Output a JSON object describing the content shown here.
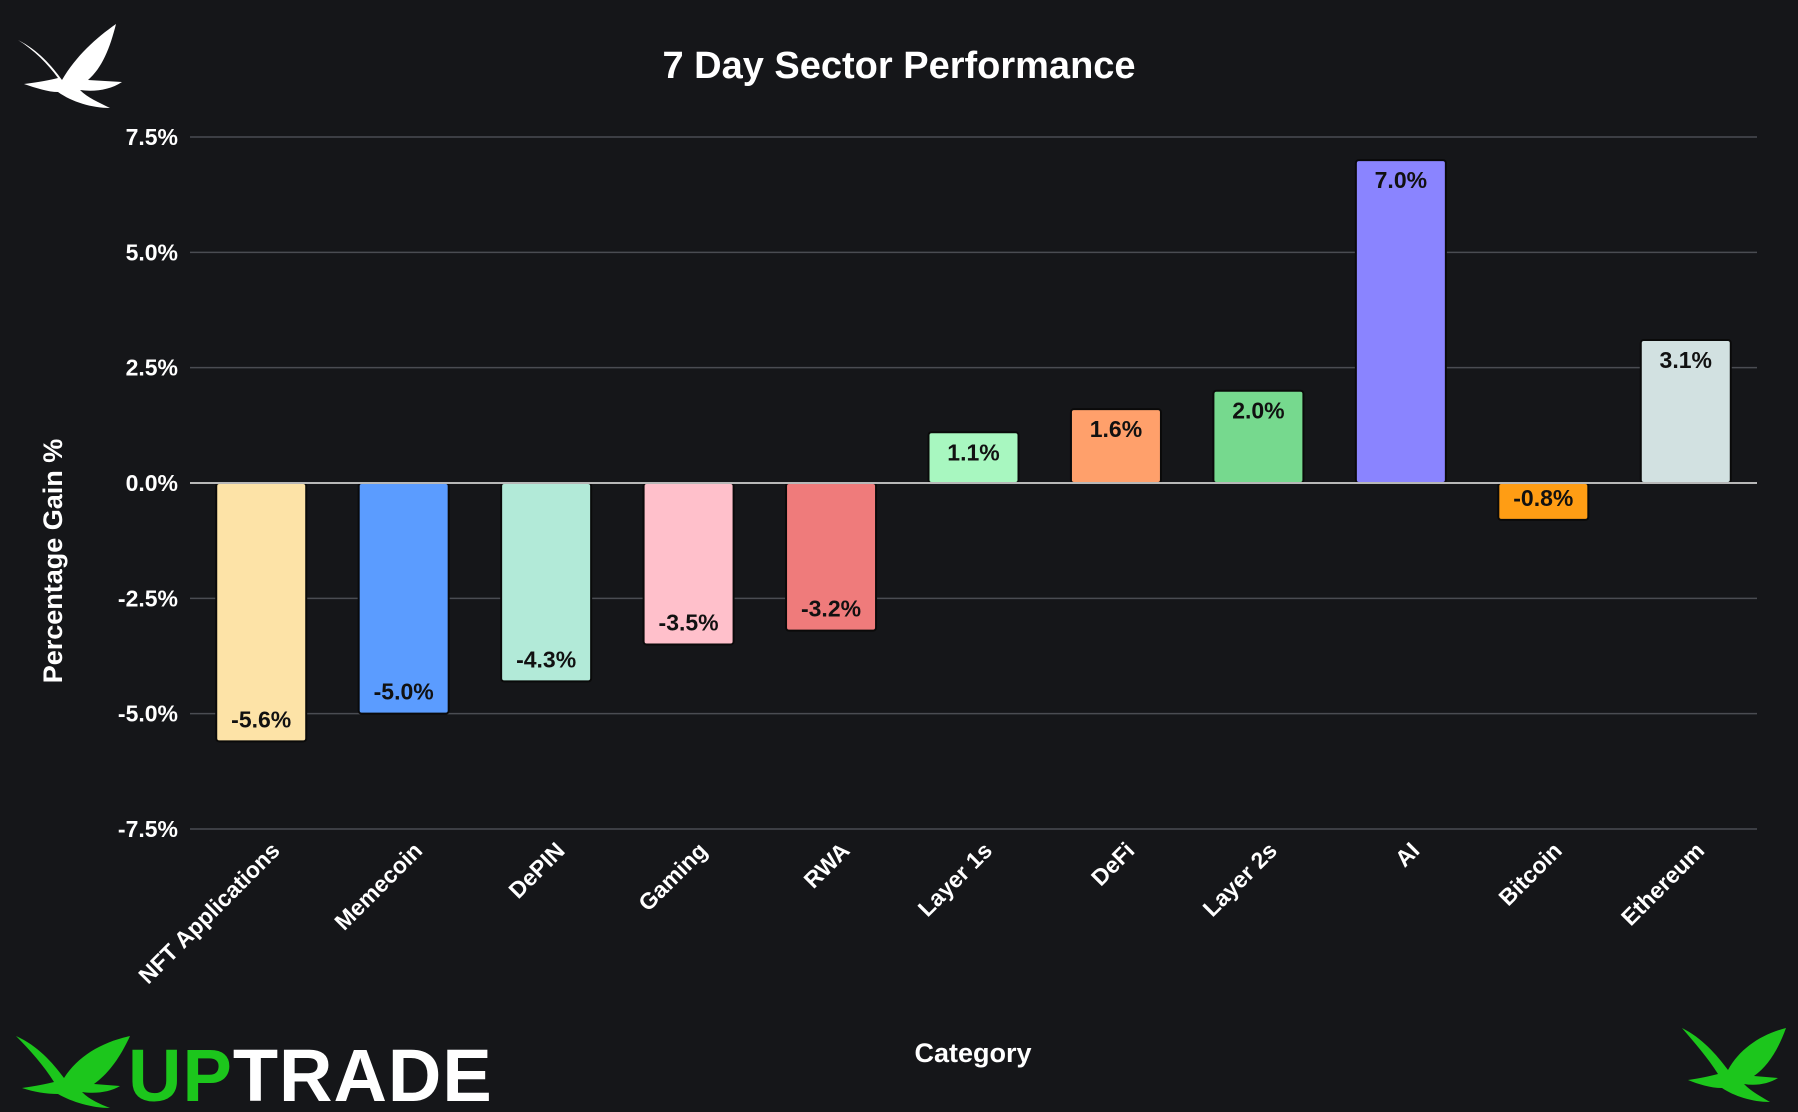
{
  "chart_data": {
    "type": "bar",
    "title": "7 Day Sector Performance",
    "xlabel": "Category",
    "ylabel": "Percentage Gain %",
    "ylim": [
      -7.5,
      7.5
    ],
    "yticks": [
      7.5,
      5.0,
      2.5,
      0.0,
      -2.5,
      -5.0,
      -7.5
    ],
    "ytick_labels": [
      "7.5%",
      "5.0%",
      "2.5%",
      "0.0%",
      "-2.5%",
      "-5.0%",
      "-7.5%"
    ],
    "grid": true,
    "categories": [
      "NFT Applications",
      "Memecoin",
      "DePIN",
      "Gaming",
      "RWA",
      "Layer 1s",
      "DeFi",
      "Layer 2s",
      "AI",
      "Bitcoin",
      "Ethereum"
    ],
    "values": [
      -5.6,
      -5.0,
      -4.3,
      -3.5,
      -3.2,
      1.1,
      1.6,
      2.0,
      7.0,
      -0.8,
      3.1
    ],
    "value_labels": [
      "-5.6%",
      "-5.0%",
      "-4.3%",
      "-3.5%",
      "-3.2%",
      "1.1%",
      "1.6%",
      "2.0%",
      "7.0%",
      "-0.8%",
      "3.1%"
    ],
    "colors": [
      "#fde3a7",
      "#5b9cff",
      "#b2ead8",
      "#ffc0cb",
      "#ef7b7b",
      "#a8f7c0",
      "#ffa06b",
      "#76d98e",
      "#8a84ff",
      "#ff9d14",
      "#d2e1e1"
    ]
  },
  "brand": {
    "part1": "UP",
    "part2": "TRADE",
    "color_green": "#1cc61c",
    "logo_icon": "bird-logo-icon"
  }
}
